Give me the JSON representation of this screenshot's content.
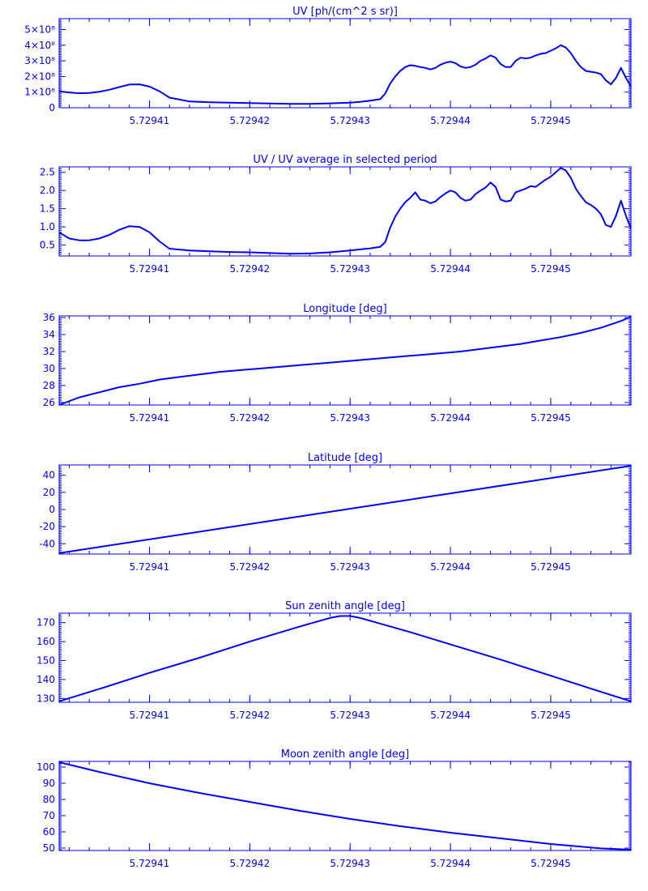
{
  "style": {
    "color": "#0000ff",
    "background": "#ffffff"
  },
  "chart_data": [
    {
      "type": "line",
      "title": "UV [ph/(cm^2 s sr)]",
      "xlabel": "",
      "ylabel": "",
      "xlim": [
        5.729401,
        5.729458
      ],
      "ylim": [
        0,
        570000000.0
      ],
      "yticks": [
        0,
        100000000.0,
        200000000.0,
        300000000.0,
        400000000.0,
        500000000.0
      ],
      "ytick_labels": [
        "0",
        "1×10⁸",
        "2×10⁸",
        "3×10⁸",
        "4×10⁸",
        "5×10⁸"
      ],
      "xticks": [
        5.72941,
        5.72942,
        5.72943,
        5.72944,
        5.72945
      ],
      "xtick_labels": [
        "5.72941",
        "5.72942",
        "5.72943",
        "5.72944",
        "5.72945"
      ],
      "grid": false,
      "x": [
        5.729401,
        5.729402,
        5.729403,
        5.729404,
        5.729405,
        5.729406,
        5.729407,
        5.729408,
        5.729409,
        5.72941,
        5.729411,
        5.729412,
        5.729414,
        5.729416,
        5.729418,
        5.72942,
        5.729422,
        5.729424,
        5.729426,
        5.729428,
        5.72943,
        5.729431,
        5.729432,
        5.729433,
        5.7294335,
        5.729434,
        5.7294345,
        5.729435,
        5.7294355,
        5.729436,
        5.7294365,
        5.729437,
        5.7294375,
        5.729438,
        5.7294385,
        5.729439,
        5.7294395,
        5.72944,
        5.7294405,
        5.729441,
        5.7294415,
        5.729442,
        5.7294425,
        5.729443,
        5.7294435,
        5.729444,
        5.7294445,
        5.729445,
        5.7294455,
        5.729446,
        5.7294465,
        5.729447,
        5.7294475,
        5.729448,
        5.7294485,
        5.729449,
        5.7294495,
        5.72945,
        5.7294505,
        5.729451,
        5.7294515,
        5.729452,
        5.7294525,
        5.729453,
        5.7294535,
        5.729454,
        5.7294545,
        5.729455,
        5.7294555,
        5.729456,
        5.7294565,
        5.729457,
        5.7294575,
        5.729458
      ],
      "y": [
        105000000.0,
        98000000.0,
        93000000.0,
        95000000.0,
        102000000.0,
        115000000.0,
        132000000.0,
        148000000.0,
        150000000.0,
        135000000.0,
        105000000.0,
        65000000.0,
        40000000.0,
        35000000.0,
        32000000.0,
        30000000.0,
        27000000.0,
        25000000.0,
        25000000.0,
        28000000.0,
        32000000.0,
        38000000.0,
        45000000.0,
        55000000.0,
        90000000.0,
        155000000.0,
        200000000.0,
        235000000.0,
        260000000.0,
        272000000.0,
        268000000.0,
        260000000.0,
        255000000.0,
        245000000.0,
        255000000.0,
        275000000.0,
        288000000.0,
        295000000.0,
        285000000.0,
        265000000.0,
        255000000.0,
        260000000.0,
        275000000.0,
        300000000.0,
        315000000.0,
        335000000.0,
        320000000.0,
        280000000.0,
        260000000.0,
        260000000.0,
        300000000.0,
        320000000.0,
        315000000.0,
        320000000.0,
        335000000.0,
        345000000.0,
        350000000.0,
        365000000.0,
        380000000.0,
        400000000.0,
        385000000.0,
        350000000.0,
        300000000.0,
        260000000.0,
        235000000.0,
        230000000.0,
        225000000.0,
        215000000.0,
        175000000.0,
        150000000.0,
        190000000.0,
        255000000.0,
        190000000.0,
        135000000.0
      ]
    },
    {
      "type": "line",
      "title": "UV / UV average in selected period",
      "xlabel": "",
      "ylabel": "",
      "xlim": [
        5.729401,
        5.729458
      ],
      "ylim": [
        0.2,
        2.65
      ],
      "yticks": [
        0.5,
        1.0,
        1.5,
        2.0,
        2.5
      ],
      "ytick_labels": [
        "0.5",
        "1.0",
        "1.5",
        "2.0",
        "2.5"
      ],
      "xticks": [
        5.72941,
        5.72942,
        5.72943,
        5.72944,
        5.72945
      ],
      "xtick_labels": [
        "5.72941",
        "5.72942",
        "5.72943",
        "5.72944",
        "5.72945"
      ],
      "grid": false,
      "x": [
        5.729401,
        5.729402,
        5.729403,
        5.729404,
        5.729405,
        5.729406,
        5.729407,
        5.729408,
        5.729409,
        5.72941,
        5.729411,
        5.729412,
        5.729414,
        5.729416,
        5.729418,
        5.72942,
        5.729422,
        5.729424,
        5.729426,
        5.729428,
        5.72943,
        5.729431,
        5.729432,
        5.729433,
        5.7294335,
        5.729434,
        5.7294345,
        5.729435,
        5.7294355,
        5.729436,
        5.7294365,
        5.729437,
        5.7294375,
        5.729438,
        5.7294385,
        5.729439,
        5.7294395,
        5.72944,
        5.7294405,
        5.729441,
        5.7294415,
        5.729442,
        5.7294425,
        5.729443,
        5.7294435,
        5.729444,
        5.7294445,
        5.729445,
        5.7294455,
        5.729446,
        5.7294465,
        5.729447,
        5.7294475,
        5.729448,
        5.7294485,
        5.729449,
        5.7294495,
        5.72945,
        5.7294505,
        5.729451,
        5.7294515,
        5.729452,
        5.7294525,
        5.729453,
        5.7294535,
        5.729454,
        5.7294545,
        5.729455,
        5.7294555,
        5.729456,
        5.7294565,
        5.729457,
        5.7294575,
        5.729458
      ],
      "y": [
        0.85,
        0.68,
        0.63,
        0.63,
        0.68,
        0.78,
        0.92,
        1.02,
        1.0,
        0.85,
        0.6,
        0.4,
        0.35,
        0.33,
        0.31,
        0.3,
        0.28,
        0.26,
        0.27,
        0.3,
        0.35,
        0.38,
        0.41,
        0.45,
        0.58,
        0.98,
        1.28,
        1.5,
        1.68,
        1.8,
        1.95,
        1.75,
        1.72,
        1.65,
        1.7,
        1.82,
        1.92,
        2.0,
        1.95,
        1.8,
        1.72,
        1.75,
        1.9,
        2.0,
        2.08,
        2.22,
        2.1,
        1.75,
        1.7,
        1.72,
        1.95,
        2.0,
        2.05,
        2.12,
        2.1,
        2.2,
        2.3,
        2.38,
        2.5,
        2.62,
        2.55,
        2.35,
        2.05,
        1.85,
        1.68,
        1.6,
        1.5,
        1.35,
        1.05,
        1.0,
        1.3,
        1.72,
        1.3,
        0.95
      ]
    },
    {
      "type": "line",
      "title": "Longitude [deg]",
      "xlabel": "",
      "ylabel": "",
      "xlim": [
        5.729401,
        5.729458
      ],
      "ylim": [
        25.7,
        36.2
      ],
      "yticks": [
        26,
        28,
        30,
        32,
        34,
        36
      ],
      "ytick_labels": [
        "26",
        "28",
        "30",
        "32",
        "34",
        "36"
      ],
      "xticks": [
        5.72941,
        5.72942,
        5.72943,
        5.72944,
        5.72945
      ],
      "xtick_labels": [
        "5.72941",
        "5.72942",
        "5.72943",
        "5.72944",
        "5.72945"
      ],
      "grid": false,
      "x": [
        5.729401,
        5.729403,
        5.729405,
        5.729407,
        5.729409,
        5.729411,
        5.729413,
        5.729415,
        5.729417,
        5.729419,
        5.729421,
        5.729423,
        5.729425,
        5.729427,
        5.729429,
        5.729431,
        5.729433,
        5.729435,
        5.729437,
        5.729439,
        5.729441,
        5.729443,
        5.729445,
        5.729447,
        5.729449,
        5.729451,
        5.729453,
        5.729455,
        5.729457,
        5.729458
      ],
      "y": [
        25.7,
        26.6,
        27.2,
        27.8,
        28.2,
        28.7,
        29.0,
        29.3,
        29.6,
        29.8,
        30.0,
        30.2,
        30.4,
        30.6,
        30.8,
        31.0,
        31.2,
        31.4,
        31.6,
        31.8,
        32.0,
        32.3,
        32.6,
        32.9,
        33.3,
        33.7,
        34.2,
        34.8,
        35.6,
        36.1
      ]
    },
    {
      "type": "line",
      "title": "Latitude [deg]",
      "xlabel": "",
      "ylabel": "",
      "xlim": [
        5.729401,
        5.729458
      ],
      "ylim": [
        -52,
        52
      ],
      "yticks": [
        -40,
        -20,
        0,
        20,
        40
      ],
      "ytick_labels": [
        "-40",
        "-20",
        "0",
        "20",
        "40"
      ],
      "xticks": [
        5.72941,
        5.72942,
        5.72943,
        5.72944,
        5.72945
      ],
      "xtick_labels": [
        "5.72941",
        "5.72942",
        "5.72943",
        "5.72944",
        "5.72945"
      ],
      "grid": false,
      "x": [
        5.729401,
        5.729458
      ],
      "y": [
        -51,
        51
      ]
    },
    {
      "type": "line",
      "title": "Sun zenith angle [deg]",
      "xlabel": "",
      "ylabel": "",
      "xlim": [
        5.729401,
        5.729458
      ],
      "ylim": [
        128,
        175
      ],
      "yticks": [
        130,
        140,
        150,
        160,
        170
      ],
      "ytick_labels": [
        "130",
        "140",
        "150",
        "160",
        "170"
      ],
      "xticks": [
        5.72941,
        5.72942,
        5.72943,
        5.72944,
        5.72945
      ],
      "xtick_labels": [
        "5.72941",
        "5.72942",
        "5.72943",
        "5.72944",
        "5.72945"
      ],
      "grid": false,
      "x": [
        5.729401,
        5.729405,
        5.72941,
        5.729415,
        5.72942,
        5.729425,
        5.729428,
        5.729429,
        5.72943,
        5.729431,
        5.729433,
        5.729436,
        5.72944,
        5.729445,
        5.72945,
        5.729455,
        5.729458
      ],
      "y": [
        128.5,
        135,
        143.5,
        151.5,
        160,
        168,
        172.5,
        173.5,
        173.5,
        172.5,
        169.5,
        165,
        158.5,
        150.5,
        142,
        133.5,
        128.5
      ]
    },
    {
      "type": "line",
      "title": "Moon zenith angle [deg]",
      "xlabel": "",
      "ylabel": "",
      "xlim": [
        5.729401,
        5.729458
      ],
      "ylim": [
        48.5,
        103.5
      ],
      "yticks": [
        50,
        60,
        70,
        80,
        90,
        100
      ],
      "ytick_labels": [
        "50",
        "60",
        "70",
        "80",
        "90",
        "100"
      ],
      "xticks": [
        5.72941,
        5.72942,
        5.72943,
        5.72944,
        5.72945
      ],
      "xtick_labels": [
        "5.72941",
        "5.72942",
        "5.72943",
        "5.72944",
        "5.72945"
      ],
      "grid": false,
      "x": [
        5.729401,
        5.729405,
        5.72941,
        5.729415,
        5.72942,
        5.729425,
        5.72943,
        5.729435,
        5.72944,
        5.729445,
        5.72945,
        5.729455,
        5.729458
      ],
      "y": [
        103,
        97,
        90,
        84,
        78.5,
        73,
        68,
        63.5,
        59.5,
        56,
        52.5,
        49.8,
        49
      ]
    }
  ]
}
